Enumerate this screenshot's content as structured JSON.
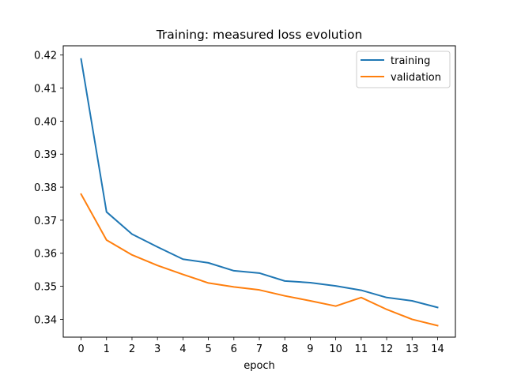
{
  "chart_data": {
    "type": "line",
    "title": "Training: measured loss evolution",
    "xlabel": "epoch",
    "ylabel": "",
    "x": [
      0,
      1,
      2,
      3,
      4,
      5,
      6,
      7,
      8,
      9,
      10,
      11,
      12,
      13,
      14
    ],
    "xticks": [
      "0",
      "1",
      "2",
      "3",
      "4",
      "5",
      "6",
      "7",
      "8",
      "9",
      "10",
      "11",
      "12",
      "13",
      "14"
    ],
    "yticks": [
      "0.34",
      "0.35",
      "0.36",
      "0.37",
      "0.38",
      "0.39",
      "0.40",
      "0.41",
      "0.42"
    ],
    "ylim": [
      0.3346,
      0.4228
    ],
    "xlim": [
      -0.7,
      14.7
    ],
    "grid": false,
    "legend_position": "upper right",
    "series": [
      {
        "name": "training",
        "color": "#1f77b4",
        "values": [
          0.4188,
          0.3725,
          0.3658,
          0.3619,
          0.3582,
          0.3571,
          0.3547,
          0.354,
          0.3516,
          0.3511,
          0.3501,
          0.3488,
          0.3466,
          0.3456,
          0.3436
        ]
      },
      {
        "name": "validation",
        "color": "#ff7f0e",
        "values": [
          0.3779,
          0.364,
          0.3595,
          0.3563,
          0.3536,
          0.351,
          0.3498,
          0.3489,
          0.3471,
          0.3456,
          0.344,
          0.3466,
          0.343,
          0.34,
          0.3381
        ]
      }
    ]
  }
}
